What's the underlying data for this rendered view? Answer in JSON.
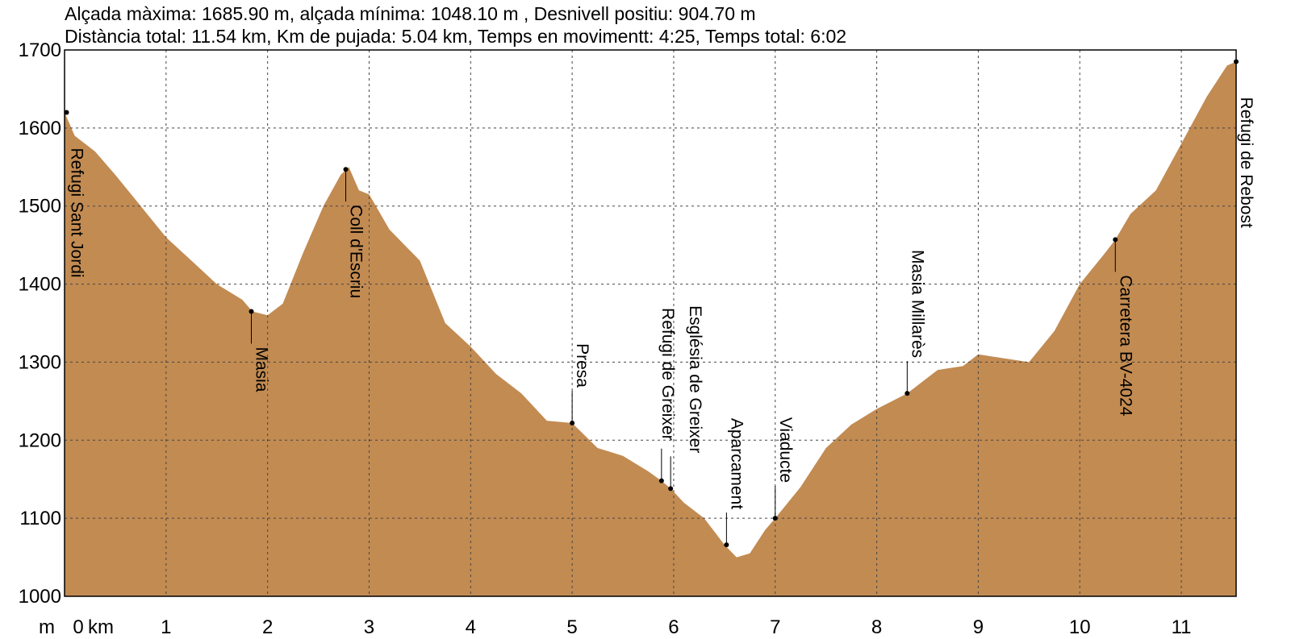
{
  "chart_data": {
    "type": "area",
    "title_line1": "Alçada màxima: 1685.90 m, alçada mínima: 1048.10 m , Desnivell positiu: 904.70 m",
    "title_line2": "Distància total: 11.54 km, Km de pujada: 5.04 km, Temps en movimentt: 4:25, Temps total: 6:02",
    "x_unit": "km",
    "y_unit": "m",
    "xlim": [
      0,
      11.54
    ],
    "ylim": [
      1000,
      1700
    ],
    "x_ticks": [
      "0",
      "1",
      "2",
      "3",
      "4",
      "5",
      "6",
      "7",
      "8",
      "9",
      "10",
      "11"
    ],
    "y_ticks": [
      "1000",
      "1100",
      "1200",
      "1300",
      "1400",
      "1500",
      "1600",
      "1700"
    ],
    "grid": true,
    "fill_color": "#C28B52",
    "x": [
      0,
      0.1,
      0.3,
      0.5,
      0.75,
      1.0,
      1.25,
      1.5,
      1.75,
      1.85,
      2.0,
      2.15,
      2.35,
      2.55,
      2.72,
      2.8,
      2.9,
      3.0,
      3.2,
      3.5,
      3.75,
      4.0,
      4.25,
      4.5,
      4.75,
      5.0,
      5.25,
      5.5,
      5.75,
      5.88,
      5.97,
      6.1,
      6.3,
      6.5,
      6.62,
      6.75,
      6.9,
      7.0,
      7.25,
      7.5,
      7.75,
      8.0,
      8.3,
      8.6,
      8.85,
      9.0,
      9.25,
      9.5,
      9.75,
      10.0,
      10.25,
      10.35,
      10.5,
      10.75,
      11.0,
      11.25,
      11.45,
      11.54
    ],
    "y": [
      1620,
      1590,
      1570,
      1540,
      1500,
      1460,
      1430,
      1400,
      1380,
      1365,
      1360,
      1375,
      1440,
      1500,
      1540,
      1550,
      1520,
      1515,
      1470,
      1430,
      1350,
      1320,
      1285,
      1260,
      1225,
      1222,
      1190,
      1180,
      1160,
      1148,
      1138,
      1120,
      1100,
      1066,
      1050,
      1055,
      1085,
      1100,
      1140,
      1190,
      1220,
      1240,
      1260,
      1290,
      1295,
      1310,
      1305,
      1300,
      1340,
      1400,
      1440,
      1457,
      1490,
      1520,
      1580,
      1640,
      1680,
      1685
    ],
    "waypoints": [
      {
        "label": "Refugi Sant Jordi",
        "x": 0.02,
        "y": 1620
      },
      {
        "label": "Masia",
        "x": 1.84,
        "y": 1365
      },
      {
        "label": "Coll d'Escriu",
        "x": 2.77,
        "y": 1547
      },
      {
        "label": "Presa",
        "x": 5.0,
        "y": 1222
      },
      {
        "label": "Refugi de Greixer",
        "x": 5.88,
        "y": 1148
      },
      {
        "label": "Església de Greixer",
        "x": 5.97,
        "y": 1138
      },
      {
        "label": "Aparcament",
        "x": 6.52,
        "y": 1066
      },
      {
        "label": "Viaducte",
        "x": 7.0,
        "y": 1100
      },
      {
        "label": "Masia Millarès",
        "x": 8.3,
        "y": 1260
      },
      {
        "label": "Carretera BV-4024",
        "x": 10.35,
        "y": 1457
      },
      {
        "label": "Refugi de Rebost",
        "x": 11.54,
        "y": 1685
      }
    ]
  }
}
